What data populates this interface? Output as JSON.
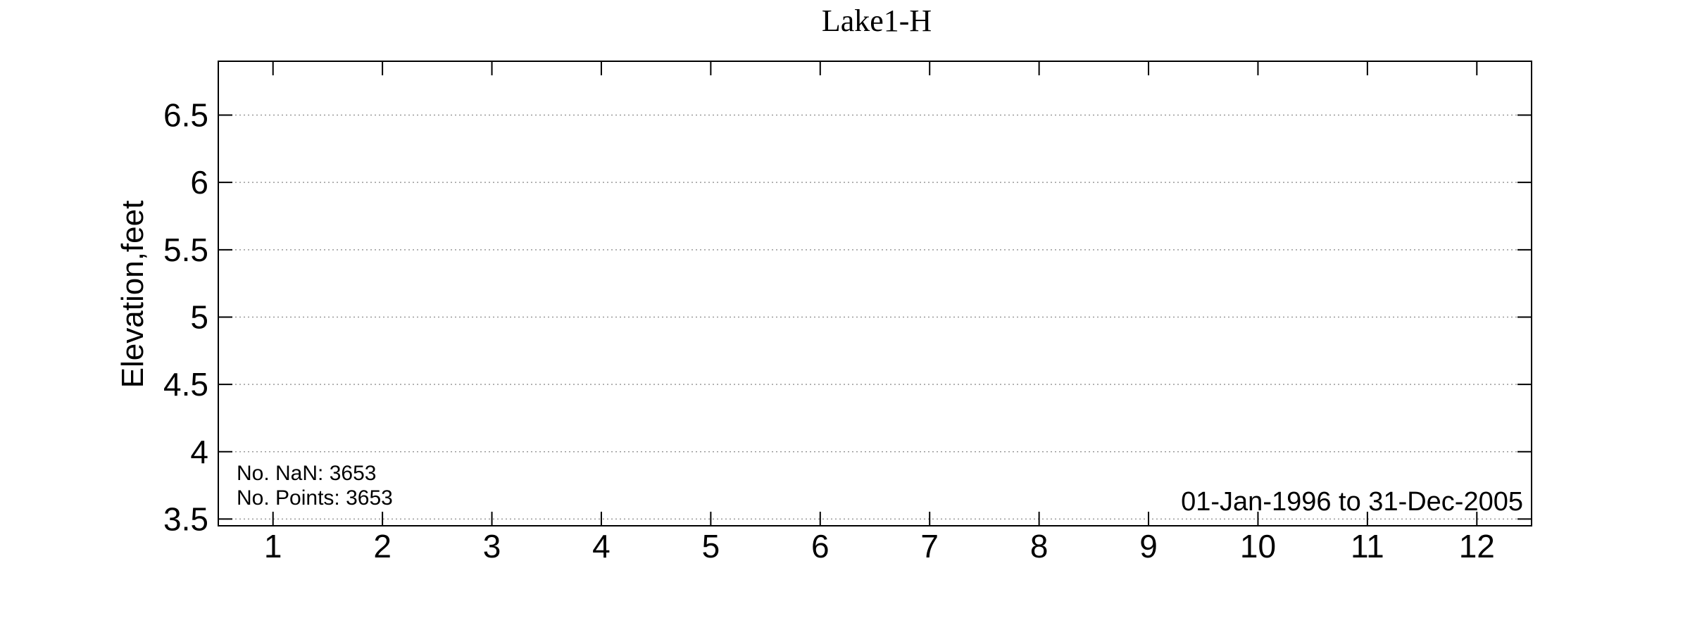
{
  "chart_data": {
    "type": "line",
    "title": "Lake1-H",
    "xlabel": "",
    "ylabel": "Elevation,feet",
    "categories": [
      "1",
      "2",
      "3",
      "4",
      "5",
      "6",
      "7",
      "8",
      "9",
      "10",
      "11",
      "12"
    ],
    "xlim": [
      0.5,
      12.5
    ],
    "ylim": [
      3.45,
      6.9
    ],
    "yticks": [
      3.5,
      4,
      4.5,
      5,
      5.5,
      6,
      6.5
    ],
    "ytick_labels": [
      "3.5",
      "4",
      "4.5",
      "5",
      "5.5",
      "6",
      "6.5"
    ],
    "grid": "horizontal dotted",
    "series": [],
    "annotations": {
      "nan_count": "No. NaN: 3653",
      "point_count": "No. Points: 3653",
      "date_range": "01-Jan-1996 to 31-Dec-2005"
    }
  }
}
